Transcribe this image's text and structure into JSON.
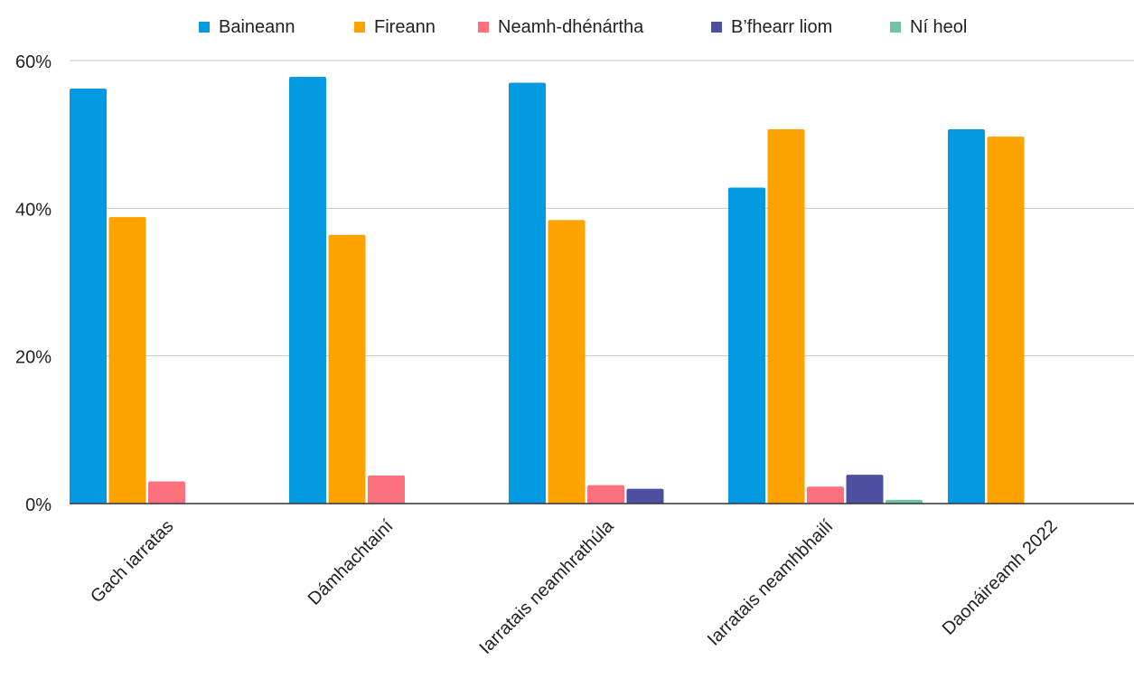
{
  "chart_data": {
    "type": "bar",
    "title": "",
    "xlabel": "",
    "ylabel": "",
    "ylim": [
      0,
      60
    ],
    "y_ticks": [
      0,
      20,
      40,
      60
    ],
    "y_tick_labels": [
      "0%",
      "20%",
      "40%",
      "60%"
    ],
    "grid": true,
    "legend_position": "top",
    "categories": [
      "Gach iarratas",
      "Dámhachtainí",
      "Iarratais neamhrathúla",
      "Iarratais neamhbhailí",
      "Daonáireamh 2022"
    ],
    "series": [
      {
        "name": "Baineann",
        "color": "#049ae1",
        "values": [
          56.2,
          57.8,
          57.0,
          42.8,
          50.7
        ]
      },
      {
        "name": "Fireann",
        "color": "#fda300",
        "values": [
          38.8,
          36.4,
          38.4,
          50.7,
          49.7
        ]
      },
      {
        "name": "Neamh-dhénártha",
        "color": "#fd717e",
        "values": [
          3.0,
          3.8,
          2.5,
          2.3,
          0
        ]
      },
      {
        "name": "B’fhearr liom",
        "color": "#4d50a0",
        "values": [
          0,
          0,
          2.0,
          3.9,
          0
        ]
      },
      {
        "name": "Ní heol",
        "color": "#6ec3a8",
        "values": [
          0,
          0,
          0,
          0.5,
          0
        ]
      }
    ]
  }
}
